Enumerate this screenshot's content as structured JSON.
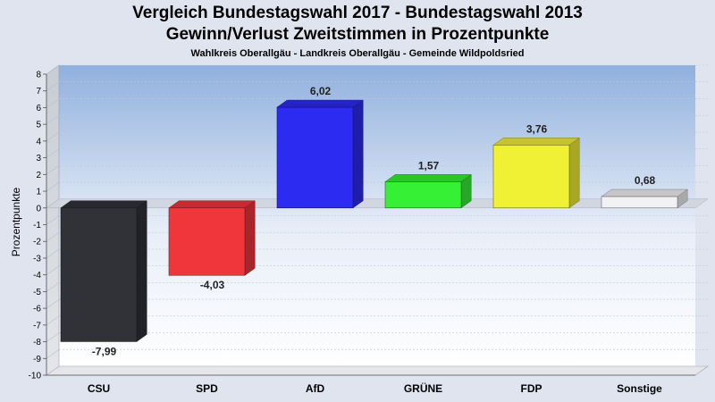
{
  "chart_data": {
    "type": "bar",
    "title": "Vergleich Bundestagswahl 2017 - Bundestagswahl 2013",
    "title2": "Gewinn/Verlust Zweitstimmen in Prozentpunkte",
    "subtitle": "Wahlkreis Oberallgäu - Landkreis Oberallgäu - Gemeinde Wildpoldsried",
    "ylabel": "Prozentpunkte",
    "xlabel": "",
    "ylim": [
      -10,
      8
    ],
    "yticks": [
      8,
      7,
      6,
      5,
      4,
      3,
      2,
      1,
      0,
      -1,
      -2,
      -3,
      -4,
      -5,
      -6,
      -7,
      -8,
      -9,
      -10
    ],
    "grid": true,
    "categories": [
      "CSU",
      "SPD",
      "AfD",
      "GRÜNE",
      "FDP",
      "Sonstige"
    ],
    "values": [
      -7.99,
      -4.03,
      6.02,
      1.57,
      3.76,
      0.68
    ],
    "value_labels": [
      "-7,99",
      "-4,03",
      "6,02",
      "1,57",
      "3,76",
      "0,68"
    ],
    "colors": [
      "#303238",
      "#f0353b",
      "#2b2bf2",
      "#35f035",
      "#f0f035",
      "#f2f2f5"
    ]
  }
}
